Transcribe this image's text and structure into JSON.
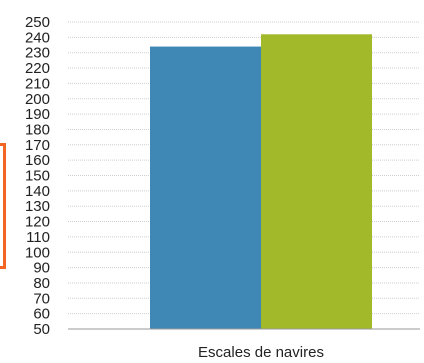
{
  "chart_data": {
    "type": "bar",
    "title": "",
    "xlabel": "",
    "ylabel": "",
    "categories": [
      "Escales de navires"
    ],
    "series": [
      {
        "values": [
          234
        ],
        "color": "#3f88b5"
      },
      {
        "values": [
          242
        ],
        "color": "#a2b92a"
      }
    ],
    "ylim": [
      50,
      250
    ],
    "yticks": [
      50,
      60,
      70,
      80,
      90,
      100,
      110,
      120,
      130,
      140,
      150,
      160,
      170,
      180,
      190,
      200,
      210,
      220,
      230,
      240,
      250
    ],
    "grid": true,
    "legend": "none"
  },
  "colors": {
    "grid": "#cfcfcf",
    "axis": "#9a9a9a",
    "bracket": "#f26522"
  }
}
